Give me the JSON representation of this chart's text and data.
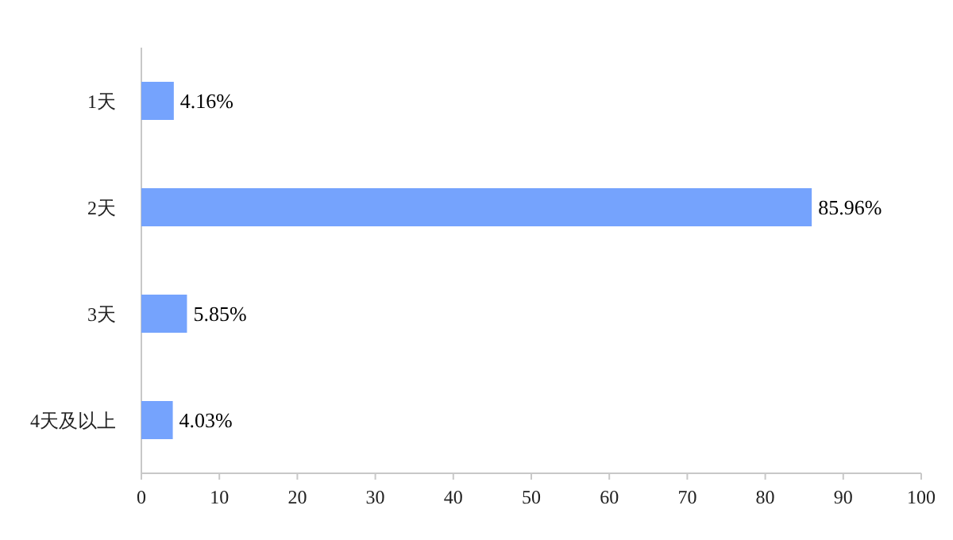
{
  "chart_data": {
    "type": "bar",
    "orientation": "horizontal",
    "categories": [
      "1天",
      "2天",
      "3天",
      "4天及以上"
    ],
    "values": [
      4.16,
      85.96,
      5.85,
      4.03
    ],
    "value_labels": [
      "4.16%",
      "85.96%",
      "5.85%",
      "4.03%"
    ],
    "color": "#75a3fd",
    "xlim": [
      0,
      100
    ],
    "xticks": [
      0,
      10,
      20,
      30,
      40,
      50,
      60,
      70,
      80,
      90,
      100
    ],
    "grid": false
  }
}
